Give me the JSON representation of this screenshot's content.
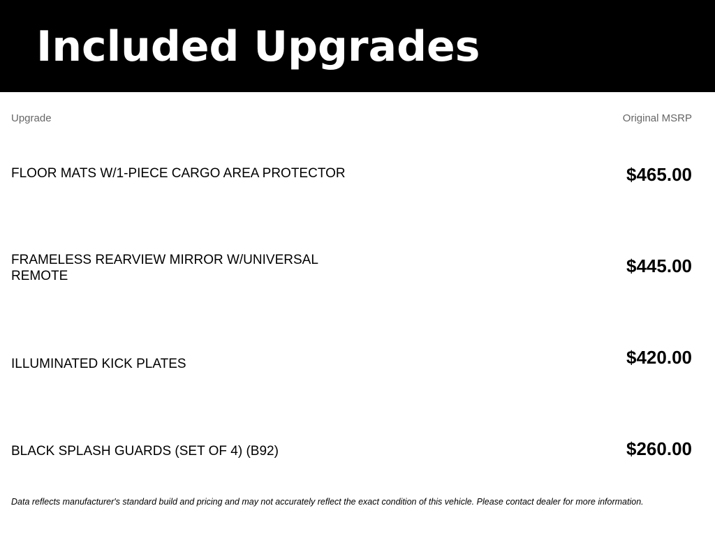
{
  "title": "Included Upgrades",
  "columns": {
    "upgrade": "Upgrade",
    "msrp": "Original MSRP"
  },
  "items": [
    {
      "name": "FLOOR MATS W/1-PIECE CARGO AREA PROTECTOR",
      "price": "$465.00"
    },
    {
      "name": "FRAMELESS REARVIEW MIRROR W/UNIVERSAL REMOTE",
      "price": "$445.00"
    },
    {
      "name": "ILLUMINATED KICK PLATES",
      "price": "$420.00"
    },
    {
      "name": "BLACK SPLASH GUARDS (SET OF 4) (B92)",
      "price": "$260.00"
    }
  ],
  "footer": "Data reflects manufacturer's standard build and pricing and may not accurately reflect the exact condition of this vehicle. Please contact dealer for more information."
}
